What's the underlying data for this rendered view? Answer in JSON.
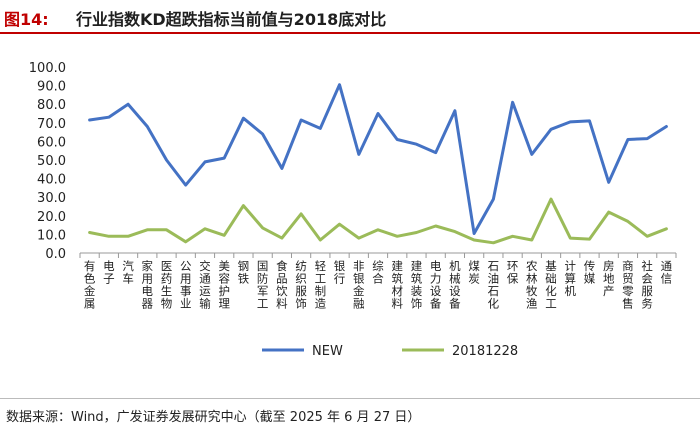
{
  "figure": {
    "label": "图14:",
    "title": "行业指数KD超跌指标当前值与2018底对比"
  },
  "source": "数据来源：Wind，广发证券发展研究中心（截至 2025 年 6 月 27 日）",
  "colors": {
    "new": "#4472c4",
    "old": "#9bbb59"
  },
  "chart_data": {
    "type": "line",
    "title": "",
    "xlabel": "",
    "ylabel": "",
    "ylim": [
      0,
      100
    ],
    "yticks": [
      "0.0",
      "10.0",
      "20.0",
      "30.0",
      "40.0",
      "50.0",
      "60.0",
      "70.0",
      "80.0",
      "90.0",
      "100.0"
    ],
    "categories": [
      "有色金属",
      "电子",
      "汽车",
      "家用电器",
      "医药生物",
      "公用事业",
      "交通运输",
      "美容护理",
      "钢铁",
      "国防军工",
      "食品饮料",
      "纺织服饰",
      "轻工制造",
      "银行",
      "非银金融",
      "综合",
      "建筑材料",
      "建筑装饰",
      "电力设备",
      "机械设备",
      "煤炭",
      "石油石化",
      "环保",
      "农林牧渔",
      "基础化工",
      "计算机",
      "传媒",
      "房地产",
      "商贸零售",
      "社会服务",
      "通信"
    ],
    "series": [
      {
        "name": "NEW",
        "values": [
          71.5,
          73,
          80,
          68,
          50,
          36.5,
          49,
          51,
          72.5,
          64,
          45.5,
          71.5,
          67,
          90.5,
          53,
          75,
          61,
          58.5,
          54,
          76.5,
          10.5,
          29,
          81,
          53,
          66.5,
          70.5,
          71,
          38,
          61,
          61.5,
          68
        ]
      },
      {
        "name": "20181228",
        "values": [
          11,
          9,
          9,
          12.5,
          12.5,
          6,
          13,
          9.5,
          25.5,
          13.5,
          8,
          21,
          7,
          15.5,
          8,
          12.5,
          9,
          11,
          14.5,
          11.5,
          7,
          5.5,
          9,
          7,
          29,
          8,
          7.5,
          22,
          17,
          9,
          13
        ]
      }
    ],
    "legend": "bottom-center"
  }
}
